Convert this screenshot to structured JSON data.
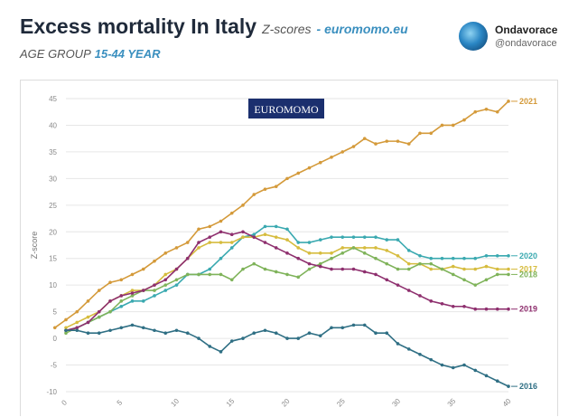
{
  "header": {
    "title": "Excess mortality In Italy",
    "subtitle_z": "Z-scores",
    "subtitle_site": "- euromomo.eu",
    "age_label": "AGE GROUP",
    "age_value": "15-44 YEAR"
  },
  "account": {
    "name": "Ondavorace",
    "handle": "@ondavorace"
  },
  "badge": "EUROMOMO",
  "chart_data": {
    "type": "line",
    "ylabel": "Z-score",
    "xlabel": "",
    "xlim": [
      0,
      40
    ],
    "ylim": [
      -10,
      45
    ],
    "x_ticks": [
      0,
      5,
      10,
      15,
      20,
      25,
      30,
      35,
      40
    ],
    "y_ticks": [
      -10,
      -5,
      0,
      5,
      10,
      15,
      20,
      25,
      30,
      35,
      40,
      45
    ],
    "grid": "horizontal",
    "legend": "right-end labels",
    "series": [
      {
        "name": "2021",
        "color": "#d49a3a",
        "values": [
          2,
          3.5,
          5,
          7,
          9,
          10.5,
          11,
          12,
          13,
          14.5,
          16,
          17,
          18,
          20.5,
          21,
          22,
          23.5,
          25,
          27,
          28,
          28.5,
          30,
          31,
          32,
          33,
          34,
          35,
          36,
          37.5,
          36.5,
          37,
          37,
          36.5,
          38.5,
          38.5,
          40,
          40,
          41,
          42.5,
          43,
          42.5,
          44.5
        ]
      },
      {
        "name": "2020",
        "color": "#3aa9b0",
        "values": [
          1.5,
          2,
          3,
          4,
          5,
          6,
          7,
          7,
          8,
          9,
          10,
          12,
          12,
          13,
          15,
          17,
          19,
          19.5,
          21,
          21,
          20.5,
          18,
          18,
          18.5,
          19,
          19,
          19,
          19,
          19,
          18.5,
          18.5,
          16.5,
          15.5,
          15,
          15,
          15,
          15,
          15,
          15.5,
          15.5,
          15.5
        ]
      },
      {
        "name": "2017",
        "color": "#d6bc3e",
        "values": [
          2,
          3,
          4,
          5,
          7,
          8,
          9,
          9,
          10,
          12,
          13,
          15,
          17,
          18,
          18,
          18,
          19,
          19,
          19.5,
          19,
          18.5,
          17,
          16,
          16,
          16,
          17,
          17,
          17,
          17,
          16.5,
          15.5,
          14,
          14,
          13,
          13,
          13.5,
          13,
          13,
          13.5,
          13,
          13
        ]
      },
      {
        "name": "2018",
        "color": "#7fb35a",
        "values": [
          1,
          2,
          3,
          4,
          5,
          7,
          8,
          9,
          9,
          10,
          11,
          12,
          12,
          12,
          12,
          11,
          13,
          14,
          13,
          12.5,
          12,
          11.5,
          13,
          14,
          15,
          16,
          17,
          16,
          15,
          14,
          13,
          13,
          14,
          14,
          13,
          12,
          11,
          10,
          11,
          12,
          12
        ]
      },
      {
        "name": "2019",
        "color": "#8e2f6e",
        "values": [
          1.5,
          2,
          3,
          5,
          7,
          8,
          8.5,
          9,
          10,
          11,
          13,
          15,
          18,
          19,
          20,
          19.5,
          20,
          19,
          18,
          17,
          16,
          15,
          14,
          13.5,
          13,
          13,
          13,
          12.5,
          12,
          11,
          10,
          9,
          8,
          7,
          6.5,
          6,
          6,
          5.5,
          5.5,
          5.5,
          5.5
        ]
      },
      {
        "name": "2016",
        "color": "#2f6f84",
        "values": [
          1.5,
          1.5,
          1,
          1,
          1.5,
          2,
          2.5,
          2,
          1.5,
          1,
          1.5,
          1,
          0,
          -1.5,
          -2.5,
          -0.5,
          0,
          1,
          1.5,
          1,
          0,
          0,
          1,
          0.5,
          2,
          2,
          2.5,
          2.5,
          1,
          1,
          -1,
          -2,
          -3,
          -4,
          -5,
          -5.5,
          -5,
          -6,
          -7,
          -8,
          -9
        ]
      }
    ]
  }
}
